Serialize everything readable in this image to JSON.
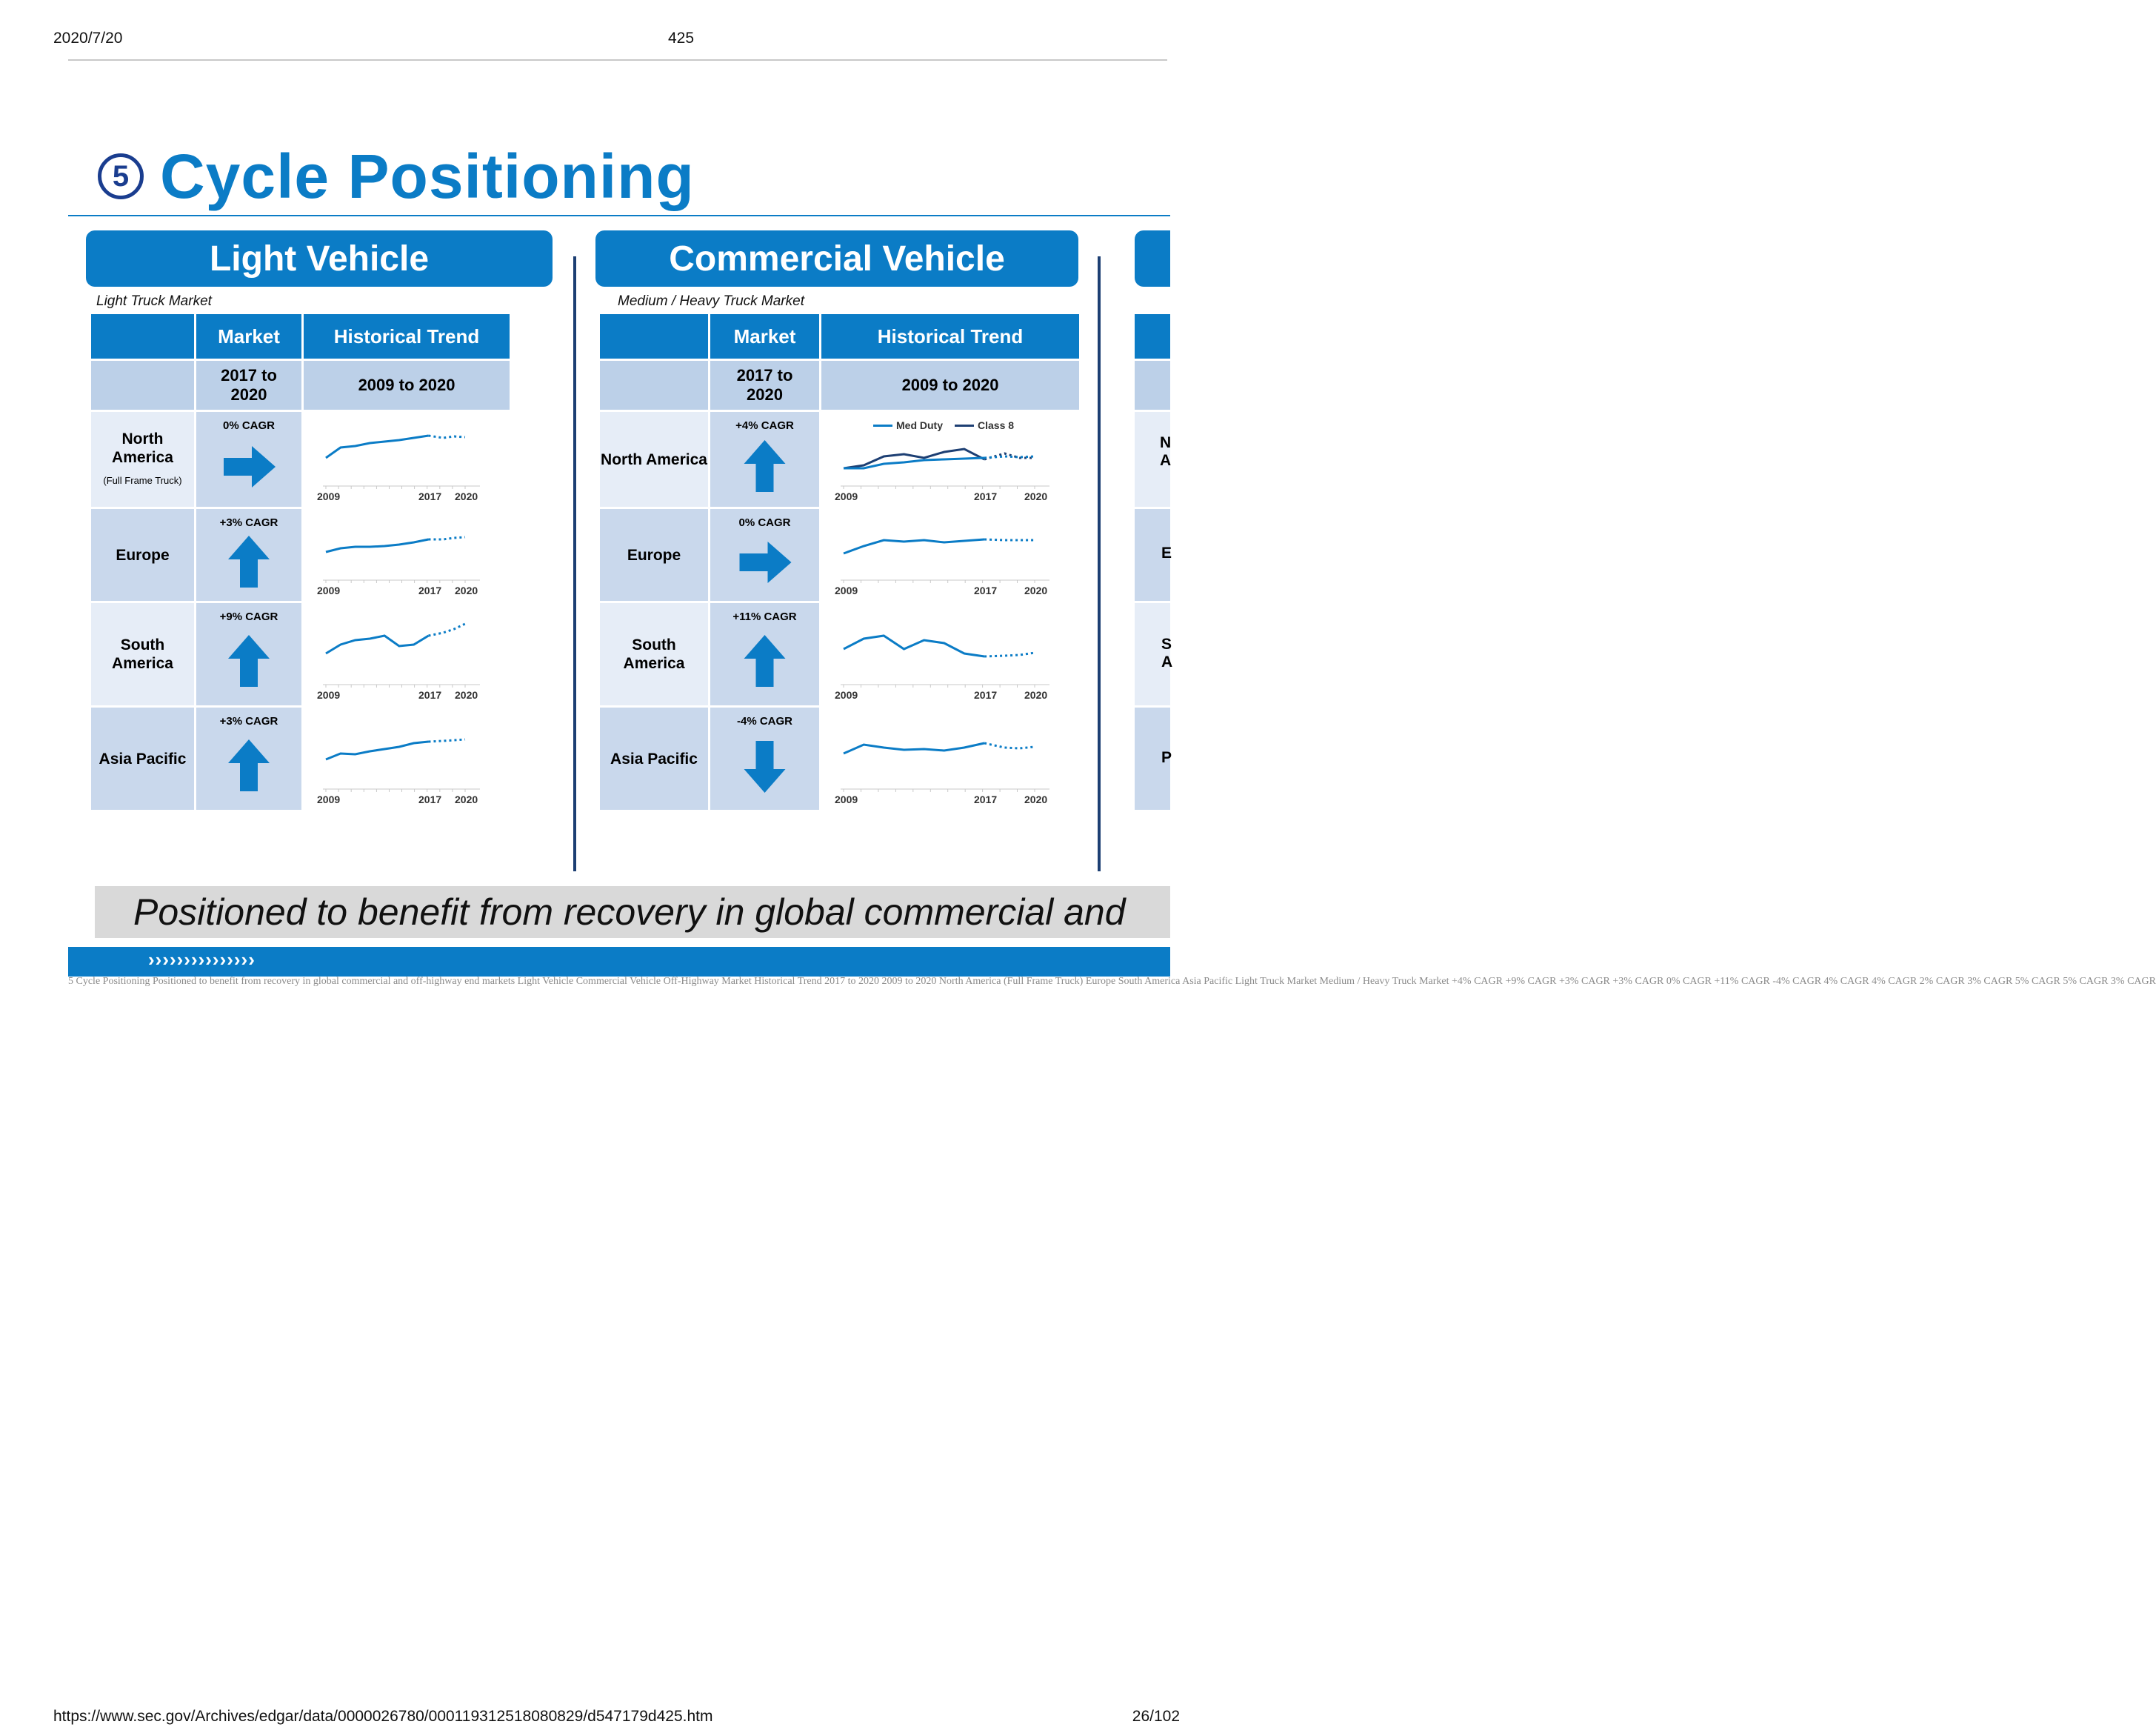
{
  "header": {
    "date": "2020/7/20",
    "page": "425"
  },
  "slide": {
    "number": "5",
    "title": "Cycle Positioning",
    "tagline": "Positioned to benefit from recovery in global commercial and",
    "footer_chevrons": "›››››››››››››››"
  },
  "panels": [
    {
      "title": "Light Vehicle",
      "subtitle": "Light Truck Market",
      "col_market": "Market",
      "col_trend": "Historical Trend",
      "sub_market": "2017    to 2020",
      "sub_trend": "2009 to 2020",
      "rows": [
        {
          "region": "North America",
          "note": "(Full Frame Truck)",
          "cagr": "0% CAGR",
          "arrow": "right",
          "years": [
            "2009",
            "2017",
            "2020"
          ]
        },
        {
          "region": "Europe",
          "note": "",
          "cagr": "+3% CAGR",
          "arrow": "up",
          "years": [
            "2009",
            "2017",
            "2020"
          ]
        },
        {
          "region": "South America",
          "note": "",
          "cagr": "+9% CAGR",
          "arrow": "up",
          "years": [
            "2009",
            "2017",
            "2020"
          ]
        },
        {
          "region": "Asia Pacific",
          "note": "",
          "cagr": "+3% CAGR",
          "arrow": "up",
          "years": [
            "2009",
            "2017",
            "2020"
          ]
        }
      ]
    },
    {
      "title": "Commercial Vehicle",
      "subtitle": "Medium / Heavy Truck Market",
      "col_market": "Market",
      "col_trend": "Historical Trend",
      "sub_market": "2017    to 2020",
      "sub_trend": "2009 to 2020",
      "legend": [
        "Med Duty",
        "Class 8"
      ],
      "rows": [
        {
          "region": "North America",
          "note": "",
          "cagr": "+4% CAGR",
          "arrow": "up",
          "years": [
            "2009",
            "2017",
            "2020"
          ]
        },
        {
          "region": "Europe",
          "note": "",
          "cagr": "0% CAGR",
          "arrow": "right",
          "years": [
            "2009",
            "2017",
            "2020"
          ]
        },
        {
          "region": "South America",
          "note": "",
          "cagr": "+11% CAGR",
          "arrow": "up",
          "years": [
            "2009",
            "2017",
            "2020"
          ]
        },
        {
          "region": "Asia Pacific",
          "note": "",
          "cagr": "-4% CAGR",
          "arrow": "down",
          "years": [
            "2009",
            "2017",
            "2020"
          ]
        }
      ]
    }
  ],
  "third_panel_clipped": {
    "row_fragments": [
      "N",
      "A",
      "E",
      "S",
      "A",
      "P"
    ]
  },
  "ocr_text": "5 Cycle Positioning Positioned to benefit from recovery in global commercial and off-highway end markets Light Vehicle Commercial Vehicle Off-Highway Market Historical Trend 2017 to 2020 2009 to 2020 North America (Full Frame Truck) Europe South America Asia Pacific Light Truck Market Medium / Heavy Truck Market +4% CAGR +9% CAGR +3% CAGR +3% CAGR 0% CAGR +11% CAGR -4% CAGR 4% CAGR 4% CAGR 2% CAGR 3% CAGR 5% CAGR 5% CAGR 3% CAGR",
  "footer": {
    "url": "https://www.sec.gov/Archives/edgar/data/0000026780/000119312518080829/d547179d425.htm",
    "page": "26/102"
  },
  "colors": {
    "accent": "#0b7cc6",
    "navy": "#1a3d8f",
    "sub_header": "#bcd0e8",
    "row_light": "#e6edf7",
    "row_dark": "#c9d8ec"
  }
}
